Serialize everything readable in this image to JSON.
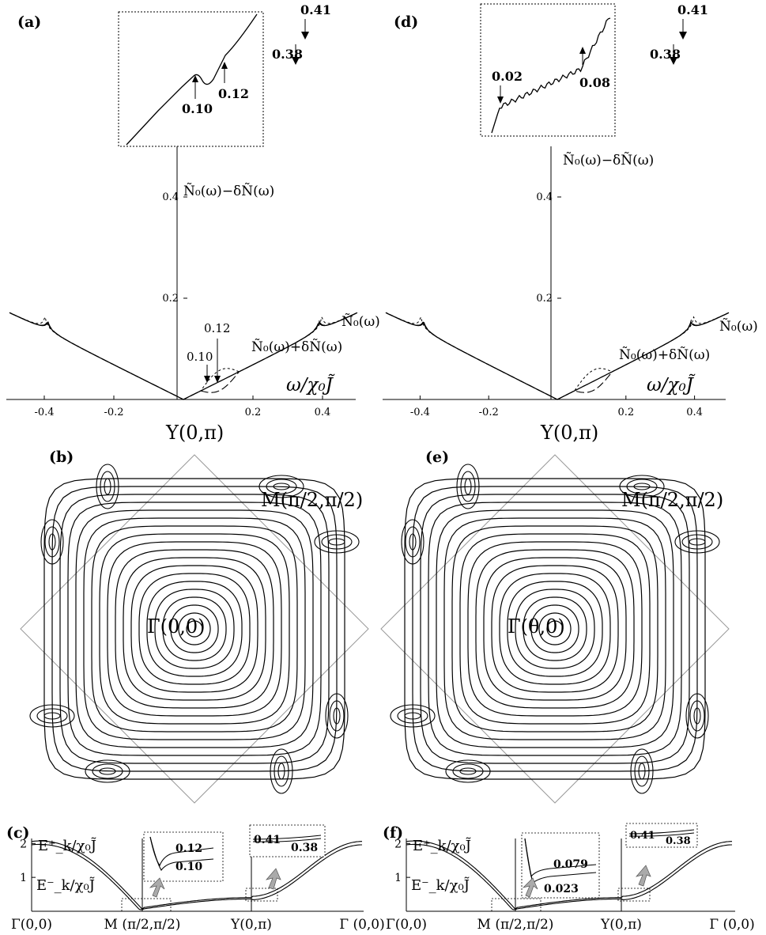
{
  "panels": {
    "a": {
      "label": "(a)"
    },
    "b": {
      "label": "(b)"
    },
    "c": {
      "label": "(c)"
    },
    "d": {
      "label": "(d)"
    },
    "e": {
      "label": "(e)"
    },
    "f": {
      "label": "(f)"
    }
  },
  "chart_data": [
    {
      "panel": "a",
      "type": "line",
      "xlabel": "ω/χ₀J̃",
      "xticks": [
        "-0.4",
        "-0.2",
        "0.2",
        "0.4"
      ],
      "yticks": [
        "0.2",
        "0.4"
      ],
      "xlim": [
        -0.5,
        0.5
      ],
      "ylim": [
        0,
        0.5
      ],
      "series": [
        {
          "name": "Ñ₀(ω)",
          "style": "solid"
        },
        {
          "name": "Ñ₀(ω)+δÑ(ω)",
          "style": "long-dash"
        },
        {
          "name": "Ñ₀(ω)−δÑ(ω)",
          "style": "short-dash"
        }
      ],
      "annotations": [
        "0.10",
        "0.12",
        "0.38",
        "0.41"
      ],
      "inset_annotations": [
        "0.10",
        "0.12"
      ]
    },
    {
      "panel": "d",
      "type": "line",
      "xlabel": "ω/χ₀J̃",
      "xticks": [
        "-0.4",
        "-0.2",
        "0.2",
        "0.4"
      ],
      "yticks": [
        "0.2",
        "0.4"
      ],
      "xlim": [
        -0.5,
        0.5
      ],
      "ylim": [
        0,
        0.5
      ],
      "series": [
        {
          "name": "Ñ₀(ω)",
          "style": "solid"
        },
        {
          "name": "Ñ₀(ω)+δÑ(ω)",
          "style": "long-dash"
        },
        {
          "name": "Ñ₀(ω)−δÑ(ω)",
          "style": "short-dash"
        }
      ],
      "annotations": [
        "0.38",
        "0.41"
      ],
      "inset_annotations": [
        "0.02",
        "0.08"
      ]
    },
    {
      "panel": "b",
      "type": "contour",
      "point_labels": [
        "Y(0,π)",
        "M(π/2,π/2)",
        "Γ(0,0)"
      ]
    },
    {
      "panel": "e",
      "type": "contour",
      "point_labels": [
        "Y(0,π)",
        "M(π/2,π/2)",
        "Γ(θ,0)"
      ]
    },
    {
      "panel": "c",
      "type": "line",
      "yticks": [
        "1",
        "2"
      ],
      "xticks": [
        "Γ(0,0)",
        "M (π/2,π/2)",
        "Y(0,π)",
        "Γ (0,0)"
      ],
      "series": [
        {
          "name": "E⁺_k/χ₀J̃"
        },
        {
          "name": "E⁻_k/χ₀J̃"
        }
      ],
      "inset1": [
        "0.12",
        "0.10"
      ],
      "inset2": [
        "0.41",
        "0.38"
      ]
    },
    {
      "panel": "f",
      "type": "line",
      "yticks": [
        "1",
        "2"
      ],
      "xticks": [
        "Γ(0,0)",
        "M (π/2,π/2)",
        "Y(0,π)",
        "Γ (0,0)"
      ],
      "series": [
        {
          "name": "E⁺_k/χ₀J̃"
        },
        {
          "name": "E⁻_k/χ₀J̃"
        }
      ],
      "inset1": [
        "0.079",
        "0.023"
      ],
      "inset2": [
        "0.41",
        "0.38"
      ]
    }
  ]
}
